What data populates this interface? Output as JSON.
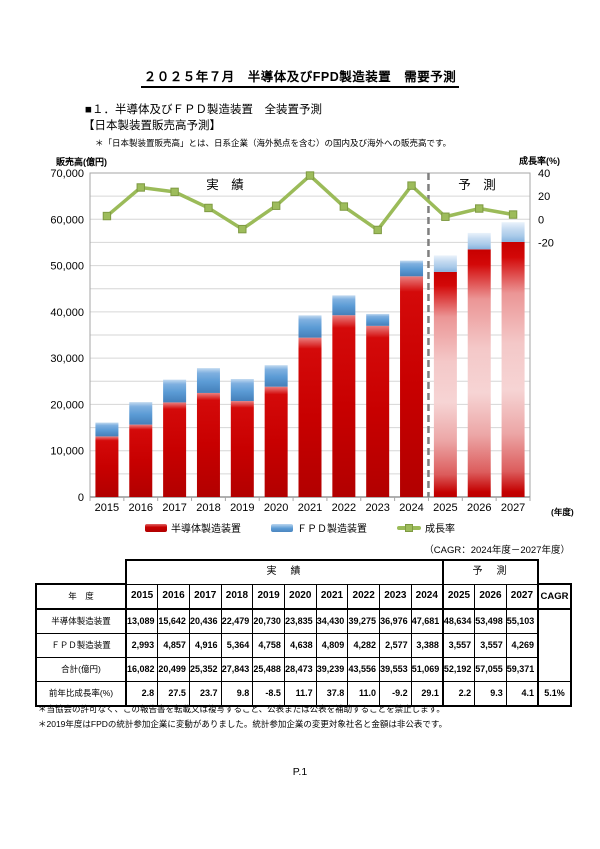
{
  "page": {
    "title": "２０２５年７月　半導体及びFPD製造装置　需要予測",
    "section_heading": "■１．半導体及びＦＰＤ製造装置　全装置予測",
    "subsection_heading": "【日本製装置販売高予測】",
    "note": "＊「日本製装置販売高」とは、日系企業（海外拠点を含む）の国内及び海外への販売高です。",
    "cagr_note": "（CAGR：2024年度－2027年度）",
    "footnotes": [
      "＊当協会の許可なく、この報告書を転載又は複写すること、公表または公表を補助することを禁止します。",
      "＊2019年度はFPDの統計参加企業に変動がありました。統計参加企業の変更対象社名と金額は非公表です。"
    ],
    "page_number": "P.1"
  },
  "chart_data": {
    "type": "combo stacked-bar + line",
    "categories": [
      "2015",
      "2016",
      "2017",
      "2018",
      "2019",
      "2020",
      "2021",
      "2022",
      "2023",
      "2024",
      "2025",
      "2026",
      "2027"
    ],
    "series": [
      {
        "name": "半導体製造装置",
        "type": "bar",
        "stack": "sales",
        "color": "#C80000",
        "values": [
          13089,
          15642,
          20436,
          22479,
          20730,
          23835,
          34430,
          39275,
          36976,
          47681,
          48634,
          53498,
          55103
        ]
      },
      {
        "name": "ＦＰＤ製造装置",
        "type": "bar",
        "stack": "sales",
        "color": "#5B9BD5",
        "values": [
          2993,
          4857,
          4916,
          5364,
          4758,
          4638,
          4809,
          4282,
          2577,
          3388,
          3557,
          3557,
          4269
        ]
      },
      {
        "name": "成長率",
        "type": "line",
        "axis": "right",
        "color": "#9BBB59",
        "values": [
          2.8,
          27.5,
          23.7,
          9.8,
          -8.5,
          11.7,
          37.8,
          11.0,
          -9.2,
          29.1,
          2.2,
          9.3,
          4.1
        ]
      }
    ],
    "left_axis": {
      "title": "販売高(億円)",
      "min": 0,
      "max": 70000,
      "gridline_step": 5000,
      "tick_step": 10000,
      "tick_labels": [
        "0",
        "10,000",
        "20,000",
        "30,000",
        "40,000",
        "50,000",
        "60,000",
        "70,000"
      ]
    },
    "right_axis": {
      "title": "成長率(%)",
      "tick_labels": [
        "40",
        "20",
        "0",
        "-20"
      ],
      "top_percent": 40,
      "percent_per_gridline": 20
    },
    "x_axis": {
      "unit_label": "(年度)"
    },
    "annotations": {
      "actual_label": "実　績",
      "forecast_label": "予　測"
    },
    "forecast_start_index": 10,
    "grid": true,
    "legend_position": "bottom"
  },
  "table": {
    "group_row": {
      "actual": "実　績",
      "forecast": "予　測"
    },
    "year_header_label": "年　度",
    "cagr_header": "CAGR",
    "years": [
      "2015",
      "2016",
      "2017",
      "2018",
      "2019",
      "2020",
      "2021",
      "2022",
      "2023",
      "2024",
      "2025",
      "2026",
      "2027"
    ],
    "rows": [
      {
        "label": "半導体製造装置",
        "values": [
          "13,089",
          "15,642",
          "20,436",
          "22,479",
          "20,730",
          "23,835",
          "34,430",
          "39,275",
          "36,976",
          "47,681",
          "48,634",
          "53,498",
          "55,103"
        ]
      },
      {
        "label": "ＦＰＤ製造装置",
        "values": [
          "2,993",
          "4,857",
          "4,916",
          "5,364",
          "4,758",
          "4,638",
          "4,809",
          "4,282",
          "2,577",
          "3,388",
          "3,557",
          "3,557",
          "4,269"
        ]
      },
      {
        "label": "合計(億円)",
        "values": [
          "16,082",
          "20,499",
          "25,352",
          "27,843",
          "25,488",
          "28,473",
          "39,239",
          "43,556",
          "39,553",
          "51,069",
          "52,192",
          "57,055",
          "59,371"
        ]
      },
      {
        "label": "前年比成長率(%)",
        "values": [
          "2.8",
          "27.5",
          "23.7",
          "9.8",
          "-8.5",
          "11.7",
          "37.8",
          "11.0",
          "-9.2",
          "29.1",
          "2.2",
          "9.3",
          "4.1"
        ],
        "cagr": "5.1%"
      }
    ]
  }
}
